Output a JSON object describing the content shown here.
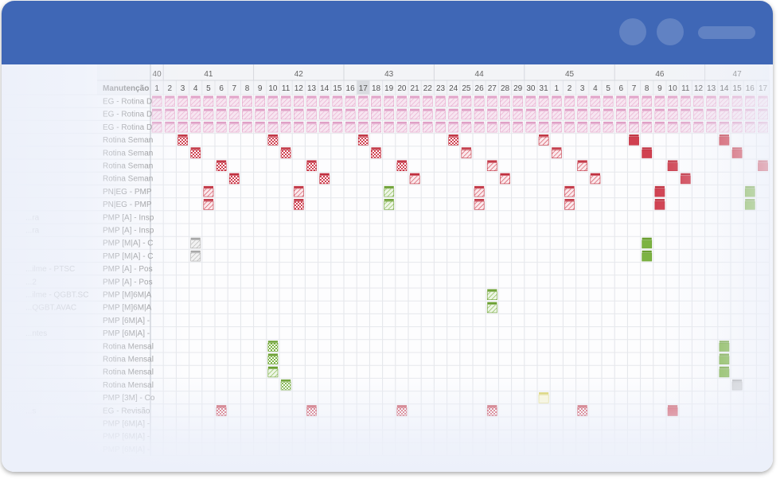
{
  "weeks": [
    {
      "label": "40",
      "days": 1
    },
    {
      "label": "41",
      "days": 7
    },
    {
      "label": "42",
      "days": 7
    },
    {
      "label": "43",
      "days": 7
    },
    {
      "label": "44",
      "days": 7
    },
    {
      "label": "45",
      "days": 7
    },
    {
      "label": "46",
      "days": 7
    },
    {
      "label": "47",
      "days": 5
    }
  ],
  "days": [
    "1",
    "2",
    "3",
    "4",
    "5",
    "6",
    "7",
    "8",
    "9",
    "10",
    "11",
    "12",
    "13",
    "14",
    "15",
    "16",
    "17",
    "18",
    "19",
    "20",
    "21",
    "22",
    "23",
    "24",
    "25",
    "26",
    "27",
    "28",
    "29",
    "30",
    "31",
    "1",
    "2",
    "3",
    "4",
    "5",
    "6",
    "7",
    "8",
    "9",
    "10",
    "11",
    "12",
    "13",
    "14",
    "15",
    "16",
    "17"
  ],
  "today_index": 16,
  "column_header": "Manutenção",
  "rows": [
    {
      "left": "",
      "label": "EG - Rotina D"
    },
    {
      "left": "",
      "label": "EG - Rotina D"
    },
    {
      "left": "",
      "label": "EG - Rotina D"
    },
    {
      "left": "",
      "label": "Rotina Seman"
    },
    {
      "left": "",
      "label": "Rotina Seman"
    },
    {
      "left": "",
      "label": "Rotina Seman"
    },
    {
      "left": "",
      "label": "Rotina Seman"
    },
    {
      "left": "",
      "label": "PN|EG - PMP"
    },
    {
      "left": "",
      "label": "PN|EG - PMP"
    },
    {
      "left": "...ra",
      "label": "PMP [A] - Insp"
    },
    {
      "left": "...ra",
      "label": "PMP [A] - Insp"
    },
    {
      "left": "",
      "label": "PMP [M|A] - C"
    },
    {
      "left": "",
      "label": "PMP [M|A] - C"
    },
    {
      "left": "...ilme - PTSC",
      "label": "PMP [A] - Pos"
    },
    {
      "left": "...2",
      "label": "PMP [A] - Pos"
    },
    {
      "left": "...ilme - QGBT.SC",
      "label": "PMP [M]6M|A"
    },
    {
      "left": "...QGBT.AVAC",
      "label": "PMP [M]6M|A"
    },
    {
      "left": "",
      "label": "PMP [6M|A] -"
    },
    {
      "left": "...ntes",
      "label": "PMP [6M|A] -"
    },
    {
      "left": "",
      "label": "Rotina Mensal"
    },
    {
      "left": "",
      "label": "Rotina Mensal"
    },
    {
      "left": "",
      "label": "Rotina Mensal"
    },
    {
      "left": "",
      "label": "Rotina Mensal"
    },
    {
      "left": "",
      "label": "PMP [3M] - Co"
    },
    {
      "left": "...s",
      "label": "EG - Revisão"
    },
    {
      "left": "",
      "label": "PMP [6M|A] -"
    },
    {
      "left": "",
      "label": "PMP [6M|A] -"
    },
    {
      "left": "",
      "label": "PMP [6M|A] -"
    }
  ],
  "colors": {
    "header_blue": "#3f67b6",
    "red": "#d04050",
    "green": "#7cb342",
    "pink": "#e8a8cc",
    "gray": "#b0b0b0",
    "yellow": "#e6e07a"
  },
  "tasks": [
    {
      "row": 0,
      "start": 0,
      "end": 47,
      "color": "pink",
      "style": "hatch"
    },
    {
      "row": 1,
      "start": 0,
      "end": 47,
      "color": "pink",
      "style": "hatch"
    },
    {
      "row": 2,
      "start": 0,
      "end": 47,
      "color": "pink",
      "style": "hatch"
    },
    {
      "row": 3,
      "cols": [
        2,
        9,
        16,
        23
      ],
      "color": "red",
      "style": "check"
    },
    {
      "row": 3,
      "cols": [
        30
      ],
      "color": "red",
      "style": "hatch"
    },
    {
      "row": 3,
      "cols": [
        37,
        44
      ],
      "color": "red",
      "style": "solid"
    },
    {
      "row": 4,
      "cols": [
        3,
        10,
        17
      ],
      "color": "red",
      "style": "check"
    },
    {
      "row": 4,
      "cols": [
        24,
        31
      ],
      "color": "red",
      "style": "hatch"
    },
    {
      "row": 4,
      "cols": [
        38,
        45
      ],
      "color": "red",
      "style": "solid"
    },
    {
      "row": 5,
      "cols": [
        5,
        12,
        19
      ],
      "color": "red",
      "style": "check"
    },
    {
      "row": 5,
      "cols": [
        26,
        33
      ],
      "color": "red",
      "style": "hatch"
    },
    {
      "row": 5,
      "cols": [
        40,
        47
      ],
      "color": "red",
      "style": "solid"
    },
    {
      "row": 6,
      "cols": [
        6,
        13
      ],
      "color": "red",
      "style": "check"
    },
    {
      "row": 6,
      "cols": [
        20,
        27,
        34
      ],
      "color": "red",
      "style": "hatch"
    },
    {
      "row": 6,
      "cols": [
        41
      ],
      "color": "red",
      "style": "solid"
    },
    {
      "row": 7,
      "cols": [
        4,
        11,
        25,
        32
      ],
      "color": "red",
      "style": "hatch"
    },
    {
      "row": 7,
      "cols": [
        18
      ],
      "color": "green",
      "style": "hatch"
    },
    {
      "row": 7,
      "cols": [
        39
      ],
      "color": "red",
      "style": "solid"
    },
    {
      "row": 7,
      "cols": [
        46
      ],
      "color": "green",
      "style": "solid"
    },
    {
      "row": 8,
      "cols": [
        4,
        25,
        32
      ],
      "color": "red",
      "style": "hatch"
    },
    {
      "row": 8,
      "cols": [
        11
      ],
      "color": "red",
      "style": "check"
    },
    {
      "row": 8,
      "cols": [
        18
      ],
      "color": "green",
      "style": "hatch"
    },
    {
      "row": 8,
      "cols": [
        39
      ],
      "color": "red",
      "style": "solid"
    },
    {
      "row": 8,
      "cols": [
        46
      ],
      "color": "green",
      "style": "solid"
    },
    {
      "row": 11,
      "cols": [
        3
      ],
      "color": "gray",
      "style": "hatch"
    },
    {
      "row": 11,
      "cols": [
        38
      ],
      "color": "green",
      "style": "solid"
    },
    {
      "row": 12,
      "cols": [
        3
      ],
      "color": "gray",
      "style": "hatch"
    },
    {
      "row": 12,
      "cols": [
        38
      ],
      "color": "green",
      "style": "solid"
    },
    {
      "row": 15,
      "cols": [
        26
      ],
      "color": "green",
      "style": "hatch"
    },
    {
      "row": 16,
      "cols": [
        26
      ],
      "color": "green",
      "style": "hatch"
    },
    {
      "row": 19,
      "cols": [
        9
      ],
      "color": "green",
      "style": "check"
    },
    {
      "row": 19,
      "cols": [
        44
      ],
      "color": "green",
      "style": "solid"
    },
    {
      "row": 20,
      "cols": [
        9
      ],
      "color": "green",
      "style": "check"
    },
    {
      "row": 20,
      "cols": [
        44
      ],
      "color": "green",
      "style": "solid"
    },
    {
      "row": 21,
      "cols": [
        9
      ],
      "color": "green",
      "style": "hatch"
    },
    {
      "row": 21,
      "cols": [
        44
      ],
      "color": "green",
      "style": "solid"
    },
    {
      "row": 22,
      "cols": [
        10
      ],
      "color": "green",
      "style": "check"
    },
    {
      "row": 22,
      "cols": [
        45
      ],
      "color": "gray",
      "style": "solid"
    },
    {
      "row": 23,
      "cols": [
        30
      ],
      "color": "yellow",
      "style": "plain"
    },
    {
      "row": 24,
      "cols": [
        5,
        12,
        19,
        26,
        33
      ],
      "color": "red",
      "style": "check"
    },
    {
      "row": 24,
      "cols": [
        40
      ],
      "color": "red",
      "style": "solid"
    }
  ]
}
